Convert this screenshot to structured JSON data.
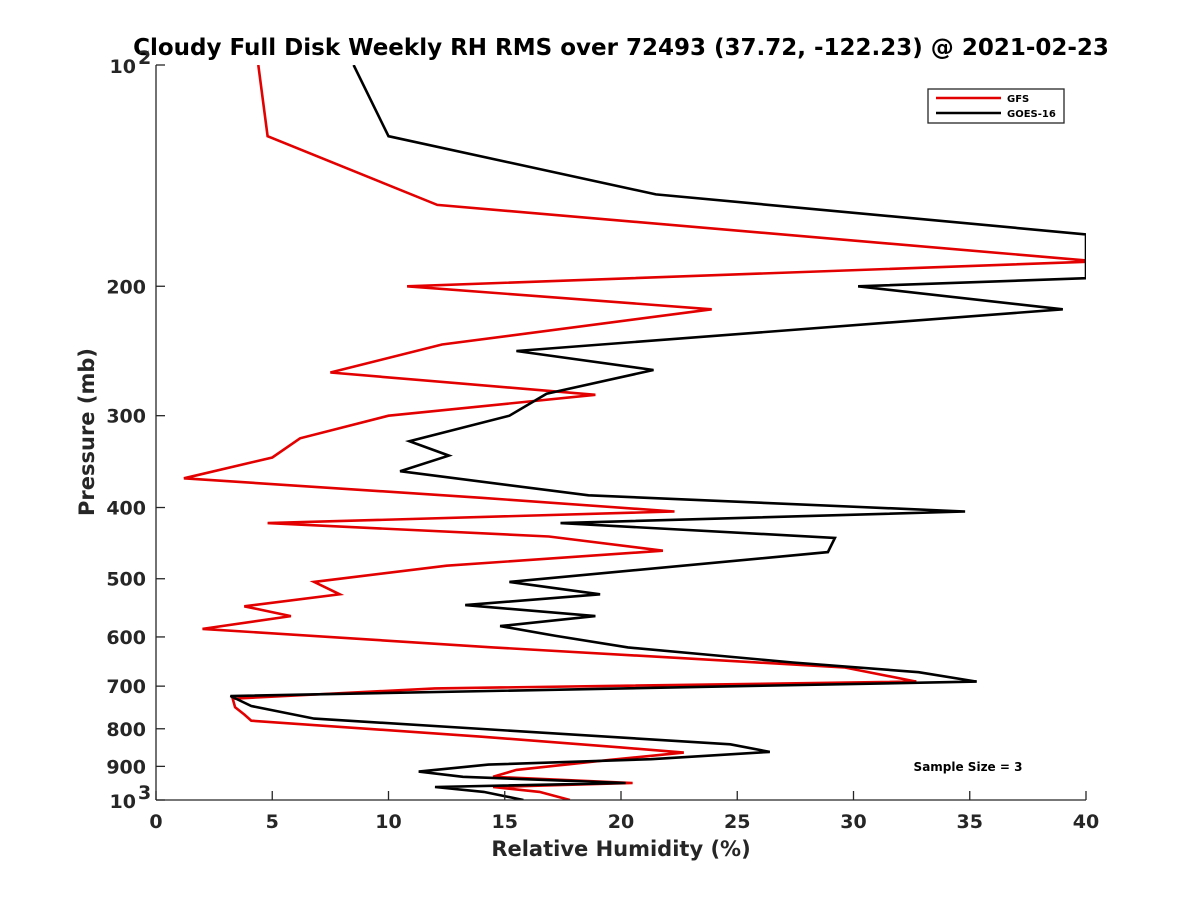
{
  "chart_data": {
    "type": "line",
    "title": "Cloudy Full Disk Weekly RH RMS over 72493 (37.72, -122.23) @ 2021-02-23",
    "xlabel": "Relative Humidity (%)",
    "ylabel": "Pressure (mb)",
    "xlim": [
      0,
      40
    ],
    "ylim": [
      100,
      1000
    ],
    "y_scale": "log",
    "y_reversed": true,
    "x_ticks": [
      "0",
      "5",
      "10",
      "15",
      "20",
      "25",
      "30",
      "35",
      "40"
    ],
    "y_ticks": [
      {
        "value": 100,
        "base": "10",
        "exp": "2"
      },
      {
        "value": 200,
        "label": "200"
      },
      {
        "value": 300,
        "label": "300"
      },
      {
        "value": 400,
        "label": "400"
      },
      {
        "value": 500,
        "label": "500"
      },
      {
        "value": 600,
        "label": "600"
      },
      {
        "value": 700,
        "label": "700"
      },
      {
        "value": 800,
        "label": "800"
      },
      {
        "value": 900,
        "label": "900"
      },
      {
        "value": 1000,
        "base": "10",
        "exp": "3"
      }
    ],
    "legend_position": "top-right",
    "annotation": "Sample Size = 3",
    "series": [
      {
        "name": "GFS",
        "color": "#e30000",
        "points": [
          [
            4.4,
            100
          ],
          [
            4.8,
            125
          ],
          [
            12.1,
            155
          ],
          [
            40.5,
            185
          ],
          [
            10.8,
            200
          ],
          [
            23.9,
            215
          ],
          [
            12.3,
            240
          ],
          [
            7.5,
            262
          ],
          [
            18.9,
            281
          ],
          [
            10.0,
            300
          ],
          [
            6.2,
            322
          ],
          [
            5.0,
            342
          ],
          [
            1.2,
            365
          ],
          [
            14.0,
            388
          ],
          [
            22.3,
            405
          ],
          [
            4.8,
            420
          ],
          [
            16.9,
            438
          ],
          [
            21.8,
            458
          ],
          [
            12.5,
            480
          ],
          [
            6.8,
            505
          ],
          [
            7.9,
            525
          ],
          [
            3.8,
            545
          ],
          [
            5.8,
            562
          ],
          [
            2.0,
            585
          ],
          [
            14.5,
            620
          ],
          [
            29.6,
            660
          ],
          [
            32.7,
            690
          ],
          [
            12.0,
            705
          ],
          [
            3.3,
            728
          ],
          [
            3.4,
            748
          ],
          [
            3.8,
            765
          ],
          [
            4.1,
            780
          ],
          [
            14.0,
            820
          ],
          [
            20.0,
            848
          ],
          [
            22.7,
            862
          ],
          [
            19.5,
            882
          ],
          [
            15.5,
            910
          ],
          [
            14.5,
            930
          ],
          [
            20.5,
            948
          ],
          [
            14.5,
            960
          ],
          [
            16.5,
            975
          ],
          [
            17.8,
            1000
          ]
        ]
      },
      {
        "name": "GOES-16",
        "color": "#000000",
        "points": [
          [
            8.5,
            100
          ],
          [
            10.0,
            125
          ],
          [
            21.5,
            150
          ],
          [
            40.0,
            170
          ],
          [
            40.0,
            195
          ],
          [
            30.2,
            200
          ],
          [
            39.0,
            215
          ],
          [
            15.5,
            245
          ],
          [
            21.4,
            260
          ],
          [
            16.8,
            280
          ],
          [
            15.2,
            300
          ],
          [
            10.9,
            325
          ],
          [
            12.6,
            340
          ],
          [
            10.5,
            357
          ],
          [
            18.6,
            385
          ],
          [
            34.8,
            405
          ],
          [
            17.4,
            420
          ],
          [
            29.2,
            440
          ],
          [
            28.9,
            460
          ],
          [
            15.2,
            505
          ],
          [
            19.1,
            525
          ],
          [
            13.3,
            543
          ],
          [
            18.9,
            562
          ],
          [
            14.8,
            580
          ],
          [
            17.2,
            598
          ],
          [
            20.3,
            620
          ],
          [
            27.4,
            650
          ],
          [
            32.8,
            670
          ],
          [
            35.3,
            690
          ],
          [
            3.2,
            722
          ],
          [
            4.1,
            745
          ],
          [
            6.8,
            775
          ],
          [
            24.7,
            840
          ],
          [
            26.4,
            860
          ],
          [
            21.3,
            880
          ],
          [
            14.3,
            895
          ],
          [
            11.3,
            915
          ],
          [
            13.2,
            930
          ],
          [
            20.2,
            948
          ],
          [
            12.0,
            960
          ],
          [
            14.1,
            975
          ],
          [
            15.8,
            1000
          ]
        ]
      }
    ]
  }
}
